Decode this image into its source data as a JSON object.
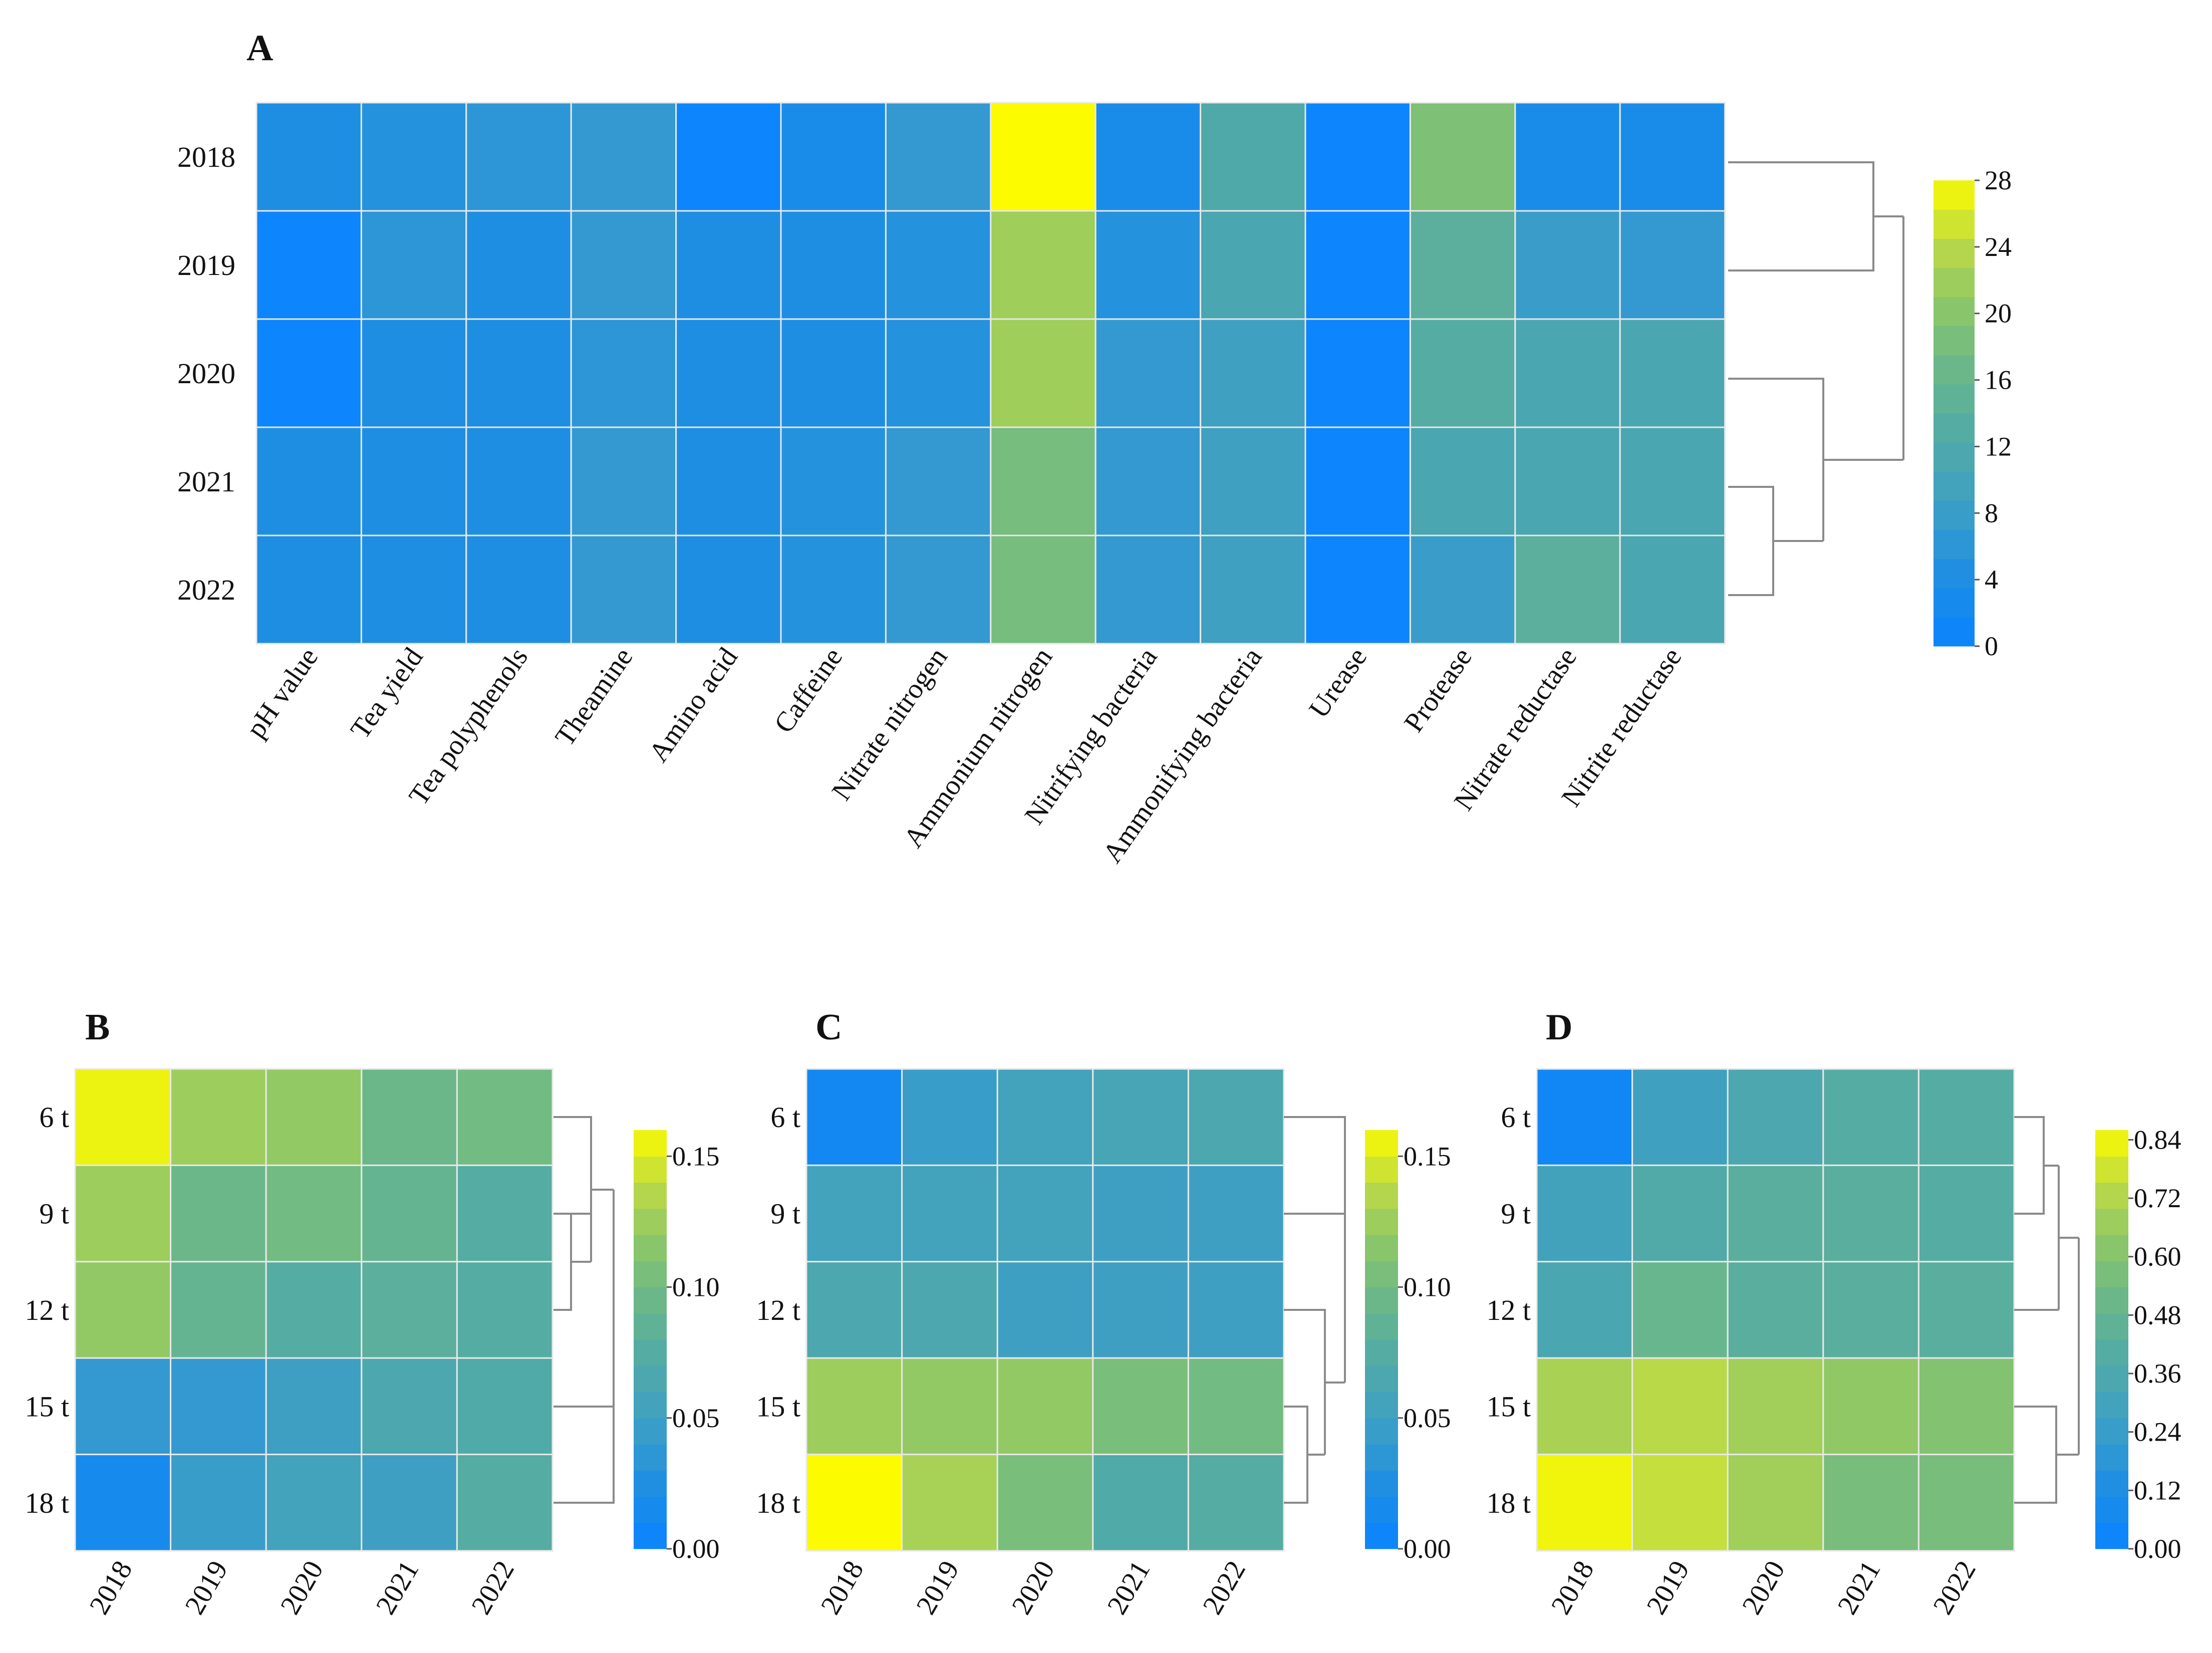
{
  "chart_data": [
    {
      "type": "heatmap",
      "panel": "A",
      "title": "",
      "rows": [
        "2018",
        "2019",
        "2020",
        "2021",
        "2022"
      ],
      "columns": [
        "pH value",
        "Tea yield",
        "Tea polyphenols",
        "Theamine",
        "Amino acid",
        "Caffeine",
        "Nitrate nitrogen",
        "Ammonium nitrogen",
        "Nitrifying bacteria",
        "Ammonifying bacteria",
        "Urease",
        "Protease",
        "Nitrate reductase",
        "Nitrite reductase"
      ],
      "values": [
        [
          4,
          5,
          6,
          7,
          0.5,
          3,
          7,
          28,
          3,
          12,
          0.3,
          19,
          3,
          3
        ],
        [
          0.5,
          6,
          4,
          7,
          4,
          4,
          5,
          22,
          5,
          11,
          0.5,
          14,
          8,
          7
        ],
        [
          0.5,
          4,
          4,
          6,
          4,
          4,
          5,
          22,
          7,
          9,
          0.5,
          13,
          11,
          11
        ],
        [
          4,
          4,
          4,
          7,
          4,
          5,
          7,
          18,
          7,
          9,
          0.5,
          11,
          11,
          11
        ],
        [
          4,
          4,
          4,
          7,
          4,
          5,
          7,
          18,
          7,
          9,
          0.5,
          8,
          14,
          11
        ]
      ],
      "colorbar": {
        "range": [
          0,
          28
        ],
        "ticks": [
          "0",
          "4",
          "8",
          "12",
          "16",
          "20",
          "24",
          "28"
        ]
      }
    },
    {
      "type": "heatmap",
      "panel": "B",
      "title": "",
      "rows": [
        "6 t",
        "9 t",
        "12 t",
        "15 t",
        "18 t"
      ],
      "columns": [
        "2018",
        "2019",
        "2020",
        "2021",
        "2022"
      ],
      "values": [
        [
          0.155,
          0.125,
          0.12,
          0.095,
          0.1
        ],
        [
          0.125,
          0.095,
          0.1,
          0.09,
          0.075
        ],
        [
          0.12,
          0.09,
          0.075,
          0.08,
          0.075
        ],
        [
          0.04,
          0.04,
          0.05,
          0.065,
          0.07
        ],
        [
          0.015,
          0.045,
          0.055,
          0.05,
          0.075
        ]
      ],
      "colorbar": {
        "range": [
          0,
          0.16
        ],
        "ticks": [
          "0.00",
          "0.05",
          "0.10",
          "0.15"
        ]
      }
    },
    {
      "type": "heatmap",
      "panel": "C",
      "title": "",
      "rows": [
        "6 t",
        "9 t",
        "12 t",
        "15 t",
        "18 t"
      ],
      "columns": [
        "2018",
        "2019",
        "2020",
        "2021",
        "2022"
      ],
      "values": [
        [
          0.01,
          0.045,
          0.055,
          0.06,
          0.065
        ],
        [
          0.055,
          0.055,
          0.055,
          0.05,
          0.05
        ],
        [
          0.065,
          0.065,
          0.05,
          0.05,
          0.05
        ],
        [
          0.125,
          0.12,
          0.12,
          0.105,
          0.1
        ],
        [
          0.16,
          0.13,
          0.105,
          0.07,
          0.075
        ]
      ],
      "colorbar": {
        "range": [
          0,
          0.16
        ],
        "ticks": [
          "0.00",
          "0.05",
          "0.10",
          "0.15"
        ]
      }
    },
    {
      "type": "heatmap",
      "panel": "D",
      "title": "",
      "rows": [
        "6 t",
        "9 t",
        "12 t",
        "15 t",
        "18 t"
      ],
      "columns": [
        "2018",
        "2019",
        "2020",
        "2021",
        "2022"
      ],
      "values": [
        [
          0.04,
          0.28,
          0.35,
          0.4,
          0.4
        ],
        [
          0.3,
          0.38,
          0.42,
          0.42,
          0.4
        ],
        [
          0.34,
          0.5,
          0.42,
          0.42,
          0.42
        ],
        [
          0.7,
          0.74,
          0.68,
          0.64,
          0.6
        ],
        [
          0.84,
          0.76,
          0.68,
          0.56,
          0.56
        ]
      ],
      "colorbar": {
        "range": [
          0,
          0.86
        ],
        "ticks": [
          "0.00",
          "0.12",
          "0.24",
          "0.36",
          "0.48",
          "0.60",
          "0.72",
          "0.84"
        ]
      }
    }
  ],
  "palette": [
    "#0a84ff",
    "#1e8ee3",
    "#3a9dc9",
    "#4fa9a9",
    "#66b58f",
    "#86c46c",
    "#b8d84a",
    "#fcfb00"
  ]
}
